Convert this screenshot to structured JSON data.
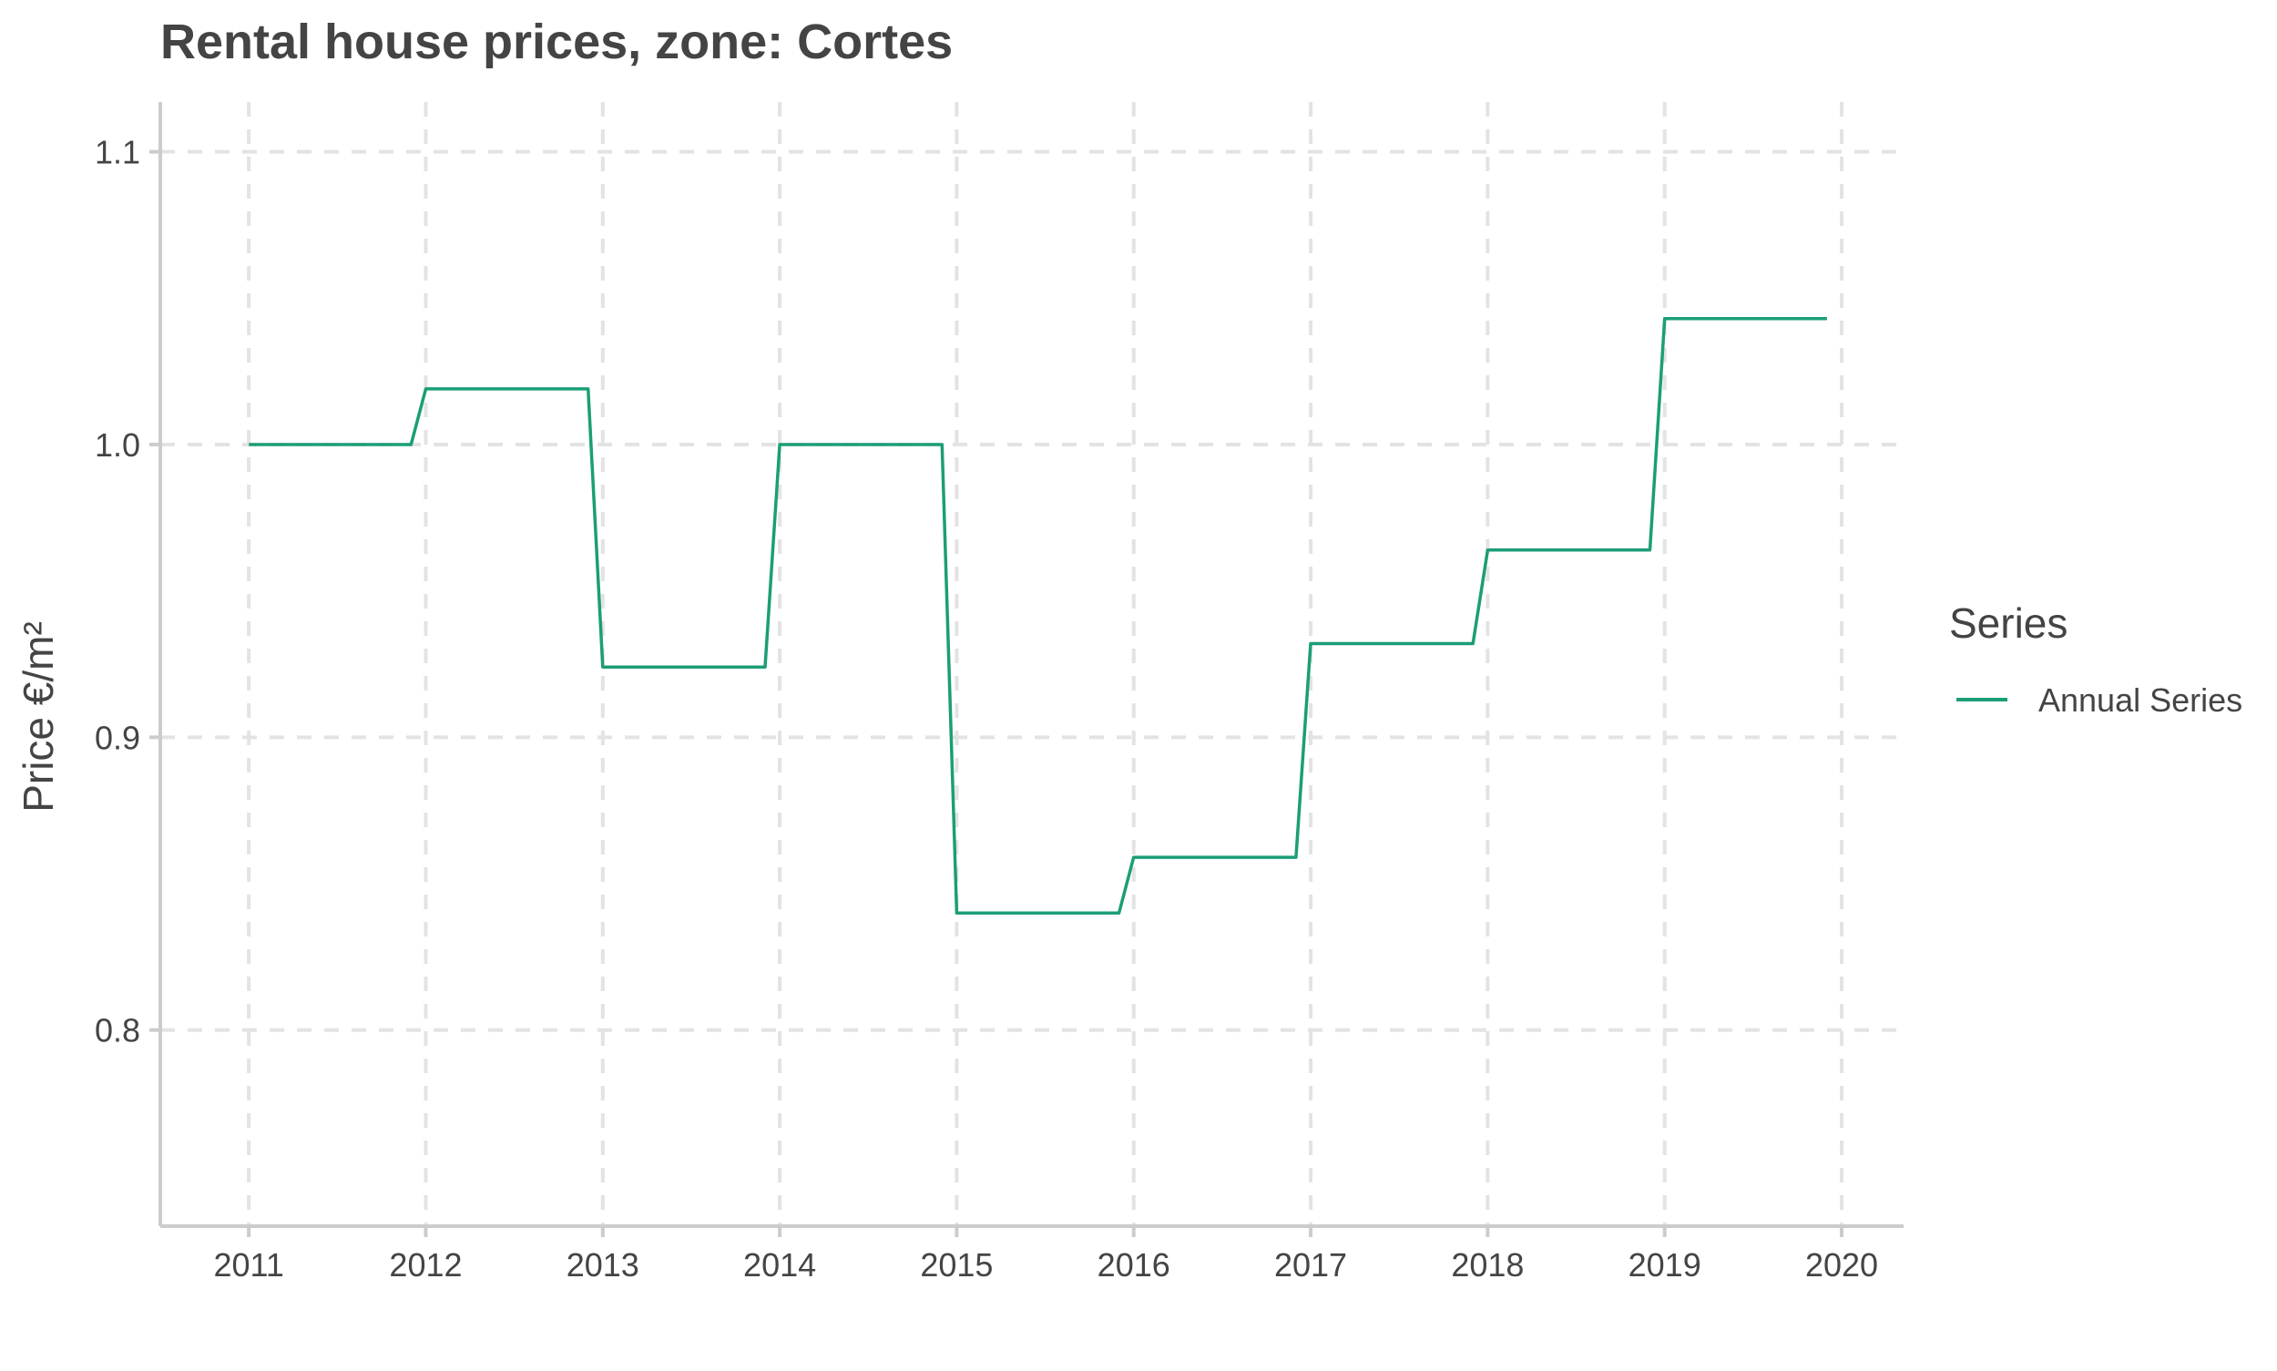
{
  "chart_data": {
    "type": "line",
    "title": "Rental house prices, zone: Cortes",
    "xlabel": "",
    "ylabel": "Price €/m²",
    "x_ticks": [
      "2011",
      "2012",
      "2013",
      "2014",
      "2015",
      "2016",
      "2017",
      "2018",
      "2019",
      "2020"
    ],
    "y_ticks": [
      "0.8",
      "0.9",
      "1.0",
      "1.1"
    ],
    "x_range": [
      2010.5,
      2020.35
    ],
    "ylim": [
      0.733,
      1.117
    ],
    "grid": true,
    "legend": {
      "title": "Series",
      "position": "right"
    },
    "series": [
      {
        "name": "Annual Series",
        "color": "#1b9e77",
        "x": [
          2011.0,
          2011.917,
          2012.0,
          2012.917,
          2013.0,
          2013.917,
          2014.0,
          2014.917,
          2015.0,
          2015.917,
          2016.0,
          2016.917,
          2017.0,
          2017.917,
          2018.0,
          2018.917,
          2019.0,
          2019.917
        ],
        "y": [
          1.0,
          1.0,
          1.019,
          1.019,
          0.924,
          0.924,
          1.0,
          1.0,
          0.84,
          0.84,
          0.859,
          0.859,
          0.932,
          0.932,
          0.964,
          0.964,
          1.043,
          1.043
        ]
      }
    ]
  }
}
